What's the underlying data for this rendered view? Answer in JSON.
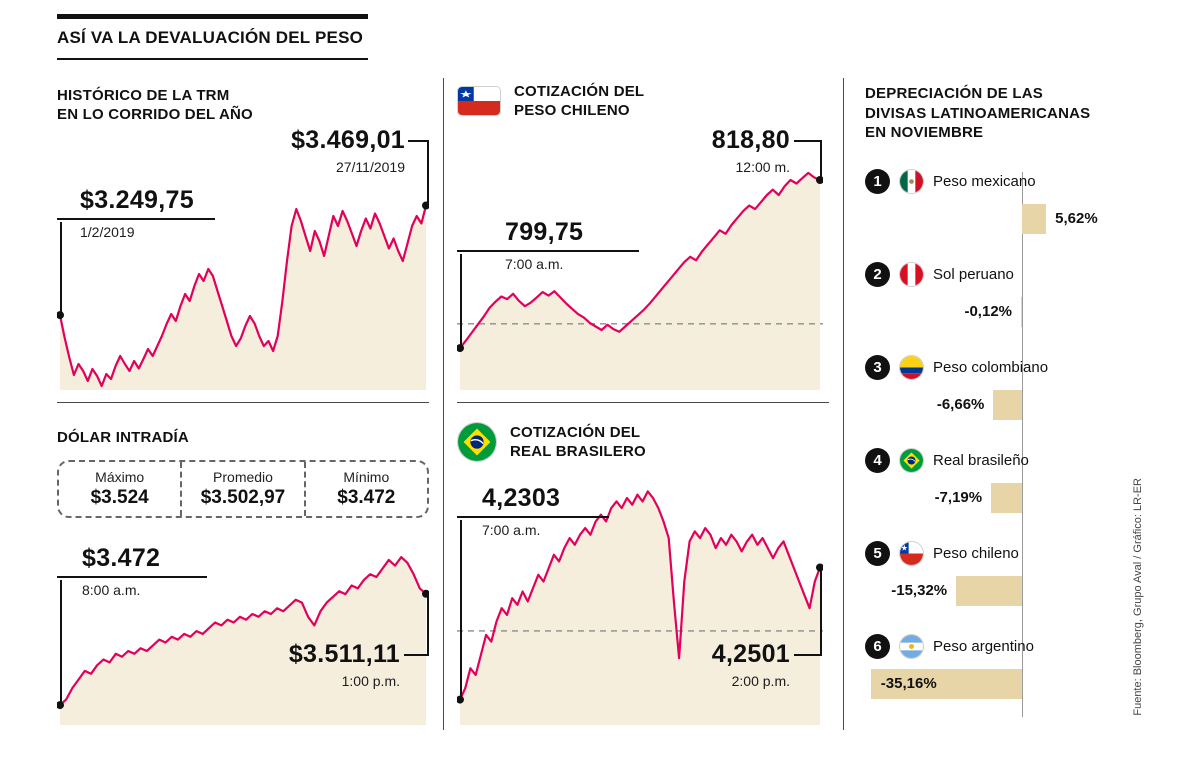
{
  "title": "ASÍ VA LA DEVALUACIÓN DEL PESO",
  "source_credit": "Fuente: Bloomberg, Grupo Aval / Gráfico: LR-ER",
  "colors": {
    "line": "#e2005a",
    "area_fill": "#f5eedd",
    "bar": "#e7d5a7",
    "ink": "#111111"
  },
  "sections": {
    "trm": {
      "heading_lines": [
        "HISTÓRICO DE LA TRM",
        "EN LO CORRIDO DEL AÑO"
      ]
    },
    "chileno": {
      "heading_lines": [
        "COTIZACIÓN DEL",
        "PESO CHILENO"
      ],
      "flag": "chile"
    },
    "intradia": {
      "heading": "DÓLAR INTRADÍA"
    },
    "real": {
      "heading_lines": [
        "COTIZACIÓN DEL",
        "REAL BRASILERO"
      ],
      "flag": "brazil"
    }
  },
  "chart_data": [
    {
      "id": "trm",
      "type": "area-line",
      "title": "HISTÓRICO DE LA TRM EN LO CORRIDO DEL AÑO",
      "y_min": 3100,
      "y_max": 3510,
      "annotations": [
        {
          "text": "$3.249,75",
          "sub": "1/2/2019",
          "point": "start"
        },
        {
          "text": "$3.469,01",
          "sub": "27/11/2019",
          "point": "end"
        }
      ],
      "values": [
        3249.75,
        3205,
        3165,
        3130,
        3152,
        3138,
        3118,
        3142,
        3128,
        3108,
        3132,
        3122,
        3148,
        3168,
        3152,
        3138,
        3158,
        3143,
        3162,
        3182,
        3168,
        3188,
        3208,
        3232,
        3252,
        3238,
        3268,
        3292,
        3278,
        3308,
        3332,
        3318,
        3342,
        3328,
        3298,
        3268,
        3238,
        3208,
        3188,
        3203,
        3228,
        3248,
        3233,
        3208,
        3188,
        3198,
        3178,
        3208,
        3278,
        3358,
        3428,
        3462,
        3438,
        3408,
        3378,
        3418,
        3398,
        3368,
        3408,
        3448,
        3428,
        3458,
        3438,
        3413,
        3388,
        3418,
        3443,
        3423,
        3453,
        3433,
        3408,
        3383,
        3403,
        3378,
        3358,
        3393,
        3428,
        3448,
        3433,
        3469.01
      ]
    },
    {
      "id": "chileno",
      "type": "area-line",
      "title": "COTIZACIÓN DEL PESO CHILENO",
      "y_min": 795,
      "y_max": 820.5,
      "reference": 802.5,
      "annotations": [
        {
          "text": "799,75",
          "sub": "7:00 a.m.",
          "point": "start"
        },
        {
          "text": "818,80",
          "sub": "12:00 m.",
          "point": "end"
        }
      ],
      "values": [
        799.75,
        800.6,
        801.5,
        802.4,
        803.3,
        804.3,
        805.0,
        805.6,
        805.3,
        805.9,
        805.1,
        804.5,
        804.9,
        805.5,
        806.1,
        805.7,
        806.2,
        805.5,
        804.8,
        804.2,
        803.6,
        803.2,
        802.6,
        802.2,
        801.8,
        802.4,
        801.9,
        801.6,
        802.2,
        802.8,
        803.4,
        804.0,
        804.7,
        805.5,
        806.3,
        807.1,
        807.9,
        808.7,
        809.5,
        810.1,
        809.7,
        810.7,
        811.5,
        812.3,
        813.1,
        812.7,
        813.7,
        814.5,
        815.3,
        815.9,
        815.5,
        816.3,
        817.1,
        817.7,
        817.1,
        818.1,
        818.8,
        818.4,
        819.0,
        819.6,
        819.1,
        818.8
      ]
    },
    {
      "id": "intradia",
      "type": "area-line",
      "title": "DÓLAR INTRADÍA",
      "y_min": 3465,
      "y_max": 3530,
      "stats": [
        {
          "label": "Máximo",
          "value": "$3.524"
        },
        {
          "label": "Promedio",
          "value": "$3.502,97"
        },
        {
          "label": "Mínimo",
          "value": "$3.472"
        }
      ],
      "annotations": [
        {
          "text": "$3.472",
          "sub": "8:00 a.m.",
          "point": "start"
        },
        {
          "text": "$3.511,11",
          "sub": "1:00 p.m.",
          "point": "end"
        }
      ],
      "values": [
        3472,
        3474,
        3478,
        3481,
        3484,
        3483,
        3486,
        3488,
        3487,
        3490,
        3489,
        3491,
        3490,
        3492,
        3491,
        3493,
        3495,
        3494,
        3496,
        3495,
        3497,
        3496,
        3498,
        3497,
        3499,
        3501,
        3500,
        3502,
        3501,
        3503,
        3502,
        3504,
        3503,
        3505,
        3504,
        3506,
        3505,
        3507,
        3509,
        3508,
        3503,
        3500,
        3505,
        3508,
        3510,
        3512,
        3511,
        3514,
        3513,
        3516,
        3518,
        3517,
        3520,
        3523,
        3521,
        3524,
        3522,
        3518,
        3513,
        3511.11
      ]
    },
    {
      "id": "real",
      "type": "area-line",
      "title": "COTIZACIÓN DEL REAL BRASILERO",
      "y_min": 4.2265,
      "y_max": 4.2635,
      "reference": 4.2406,
      "annotations": [
        {
          "text": "4,2303",
          "sub": "7:00 a.m.",
          "point": "start"
        },
        {
          "text": "4,2501",
          "sub": "2:00 p.m.",
          "point": "end"
        }
      ],
      "values": [
        4.2303,
        4.232,
        4.235,
        4.234,
        4.237,
        4.24,
        4.239,
        4.242,
        4.244,
        4.243,
        4.2455,
        4.2445,
        4.2465,
        4.245,
        4.247,
        4.249,
        4.248,
        4.25,
        4.252,
        4.251,
        4.253,
        4.2545,
        4.2535,
        4.255,
        4.256,
        4.255,
        4.257,
        4.258,
        4.257,
        4.259,
        4.26,
        4.259,
        4.2605,
        4.2595,
        4.261,
        4.26,
        4.2615,
        4.2605,
        4.259,
        4.257,
        4.2545,
        4.245,
        4.2365,
        4.248,
        4.254,
        4.2555,
        4.2545,
        4.256,
        4.255,
        4.253,
        4.2545,
        4.2535,
        4.255,
        4.254,
        4.2525,
        4.254,
        4.255,
        4.2535,
        4.2545,
        4.253,
        4.2515,
        4.253,
        4.254,
        4.252,
        4.25,
        4.248,
        4.246,
        4.244,
        4.248,
        4.2501
      ]
    },
    {
      "id": "depreciation",
      "type": "bar",
      "title_lines": [
        "DEPRECIACIÓN DE LAS",
        "DIVISAS  LATINOAMERICANAS",
        "EN NOVIEMBRE"
      ],
      "unit": "%",
      "items": [
        {
          "rank": "1",
          "flag": "mexico",
          "name": "Peso mexicano",
          "value": 5.62,
          "label": "5,62%"
        },
        {
          "rank": "2",
          "flag": "peru",
          "name": "Sol peruano",
          "value": -0.12,
          "label": "-0,12%"
        },
        {
          "rank": "3",
          "flag": "colombia",
          "name": "Peso colombiano",
          "value": -6.66,
          "label": "-6,66%"
        },
        {
          "rank": "4",
          "flag": "brazil",
          "name": "Real brasileño",
          "value": -7.19,
          "label": "-7,19%"
        },
        {
          "rank": "5",
          "flag": "chile",
          "name": "Peso chileno",
          "value": -15.32,
          "label": "-15,32%"
        },
        {
          "rank": "6",
          "flag": "argentina",
          "name": "Peso argentino",
          "value": -35.16,
          "label": "-35,16%"
        }
      ]
    }
  ]
}
